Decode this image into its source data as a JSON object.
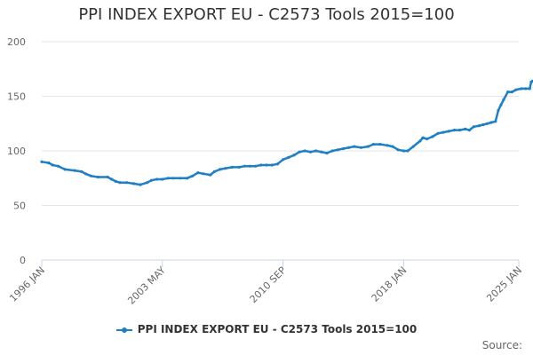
{
  "chart_data": {
    "type": "line",
    "title": "PPI INDEX EXPORT EU - C2573 Tools 2015=100",
    "xlabel": "",
    "ylabel": "",
    "ylim": [
      0,
      200
    ],
    "yticks": [
      0,
      50,
      100,
      150,
      200
    ],
    "xlim": [
      "1996-01",
      "2025-01"
    ],
    "xticks": [
      {
        "label": "1996 JAN",
        "date": "1996-01"
      },
      {
        "label": "2003 MAY",
        "date": "2003-05"
      },
      {
        "label": "2010 SEP",
        "date": "2010-09"
      },
      {
        "label": "2018 JAN",
        "date": "2018-01"
      },
      {
        "label": "2025 JAN",
        "date": "2025-01"
      }
    ],
    "grid": true,
    "legend_position": "bottom",
    "series": [
      {
        "name": "PPI INDEX EXPORT EU - C2573 Tools 2015=100",
        "color": "#1f7fc4",
        "points": [
          [
            "1996-01",
            90
          ],
          [
            "1996-06",
            89
          ],
          [
            "1996-09",
            87
          ],
          [
            "1997-01",
            86
          ],
          [
            "1997-06",
            83
          ],
          [
            "1998-01",
            82
          ],
          [
            "1998-06",
            81
          ],
          [
            "1998-09",
            79
          ],
          [
            "1999-01",
            77
          ],
          [
            "1999-06",
            76
          ],
          [
            "2000-01",
            76
          ],
          [
            "2000-04",
            74
          ],
          [
            "2000-07",
            72
          ],
          [
            "2000-10",
            71
          ],
          [
            "2001-03",
            71
          ],
          [
            "2001-08",
            70
          ],
          [
            "2002-01",
            69
          ],
          [
            "2002-06",
            71
          ],
          [
            "2002-09",
            73
          ],
          [
            "2003-01",
            74
          ],
          [
            "2003-05",
            74
          ],
          [
            "2003-09",
            75
          ],
          [
            "2004-01",
            75
          ],
          [
            "2004-06",
            75
          ],
          [
            "2004-11",
            75
          ],
          [
            "2005-03",
            77
          ],
          [
            "2005-07",
            80
          ],
          [
            "2005-11",
            79
          ],
          [
            "2006-04",
            78
          ],
          [
            "2006-07",
            81
          ],
          [
            "2006-11",
            83
          ],
          [
            "2007-03",
            84
          ],
          [
            "2007-08",
            85
          ],
          [
            "2008-01",
            85
          ],
          [
            "2008-05",
            86
          ],
          [
            "2008-09",
            86
          ],
          [
            "2009-01",
            86
          ],
          [
            "2009-05",
            87
          ],
          [
            "2009-09",
            87
          ],
          [
            "2010-01",
            87
          ],
          [
            "2010-05",
            88
          ],
          [
            "2010-09",
            92
          ],
          [
            "2011-01",
            94
          ],
          [
            "2011-05",
            96
          ],
          [
            "2011-09",
            99
          ],
          [
            "2012-01",
            100
          ],
          [
            "2012-05",
            99
          ],
          [
            "2012-09",
            100
          ],
          [
            "2013-01",
            99
          ],
          [
            "2013-05",
            98
          ],
          [
            "2013-09",
            100
          ],
          [
            "2014-01",
            101
          ],
          [
            "2014-05",
            102
          ],
          [
            "2014-09",
            103
          ],
          [
            "2015-01",
            104
          ],
          [
            "2015-06",
            103
          ],
          [
            "2015-11",
            104
          ],
          [
            "2016-03",
            106
          ],
          [
            "2016-08",
            106
          ],
          [
            "2017-01",
            105
          ],
          [
            "2017-05",
            104
          ],
          [
            "2017-09",
            101
          ],
          [
            "2018-01",
            100
          ],
          [
            "2018-04",
            100
          ],
          [
            "2018-08",
            104
          ],
          [
            "2019-01",
            109
          ],
          [
            "2019-03",
            112
          ],
          [
            "2019-06",
            111
          ],
          [
            "2019-10",
            113
          ],
          [
            "2020-02",
            116
          ],
          [
            "2020-06",
            117
          ],
          [
            "2020-10",
            118
          ],
          [
            "2021-02",
            119
          ],
          [
            "2021-06",
            119
          ],
          [
            "2021-10",
            120
          ],
          [
            "2022-01",
            119
          ],
          [
            "2022-04",
            122
          ],
          [
            "2022-08",
            123
          ],
          [
            "2022-11",
            124
          ],
          [
            "2023-02",
            125
          ],
          [
            "2023-05",
            126
          ],
          [
            "2023-08",
            127
          ],
          [
            "2023-10",
            137
          ],
          [
            "2023-12",
            142
          ],
          [
            "2024-02",
            147
          ],
          [
            "2024-05",
            154
          ],
          [
            "2024-08",
            154
          ],
          [
            "2024-11",
            156
          ],
          [
            "2025-03",
            157
          ],
          [
            "2025-06",
            157
          ],
          [
            "2025-09",
            157
          ],
          [
            "2025-10",
            163
          ],
          [
            "2025-11",
            164
          ],
          [
            "2026-01",
            162
          ],
          [
            "2026-04",
            161
          ],
          [
            "2026-07",
            161
          ]
        ]
      }
    ]
  },
  "credit": "Source:"
}
